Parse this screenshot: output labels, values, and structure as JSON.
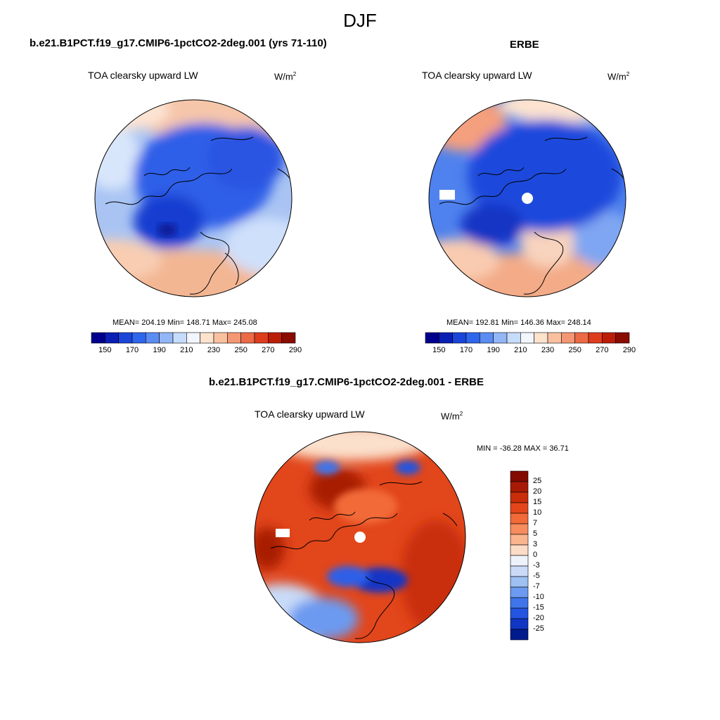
{
  "figure": {
    "season_title": "DJF",
    "panels": [
      {
        "id": "model",
        "title": "b.e21.B1PCT.f19_g17.CMIP6-1pctCO2-2deg.001 (yrs 71-110)",
        "variable": "TOA clearsky upward LW",
        "units_base": "W/m",
        "units_exp": "2",
        "stats": {
          "mean": "204.19",
          "min": "148.71",
          "max": "245.08"
        },
        "stats_text": "MEAN= 204.19  Min= 148.71  Max= 245.08"
      },
      {
        "id": "obs",
        "title": "ERBE",
        "variable": "TOA clearsky upward LW",
        "units_base": "W/m",
        "units_exp": "2",
        "stats": {
          "mean": "192.81",
          "min": "146.36",
          "max": "248.14"
        },
        "stats_text": "MEAN= 192.81  Min= 146.36  Max= 248.14"
      },
      {
        "id": "diff",
        "title": "b.e21.B1PCT.f19_g17.CMIP6-1pctCO2-2deg.001 - ERBE",
        "variable": "TOA clearsky upward LW",
        "units_base": "W/m",
        "units_exp": "2",
        "stats_text": "MIN = -36.28 MAX =  36.71"
      }
    ],
    "abs_colorbar": {
      "labels": [
        "150",
        "170",
        "190",
        "210",
        "230",
        "250",
        "270",
        "290"
      ],
      "colors": [
        "#00008c",
        "#0a1fb4",
        "#1a45d8",
        "#2e66ec",
        "#5b8cf2",
        "#93b6f6",
        "#c6dcfb",
        "#f2f6fd",
        "#fde2cc",
        "#f9c0a0",
        "#f49774",
        "#ec6a46",
        "#dd3d1c",
        "#bc1d08",
        "#8a0b00"
      ]
    },
    "diff_colorbar": {
      "labels": [
        "25",
        "20",
        "15",
        "10",
        "7",
        "5",
        "3",
        "0",
        "-3",
        "-5",
        "-7",
        "-10",
        "-15",
        "-20",
        "-25"
      ],
      "colors": [
        "#820a00",
        "#a81a05",
        "#c92d0a",
        "#e3461b",
        "#f26a38",
        "#f78c5e",
        "#fab48e",
        "#fcdcc6",
        "#eef3fb",
        "#c9dbf7",
        "#9ec0f2",
        "#6c9af0",
        "#3f74ea",
        "#2454e0",
        "#1236c4",
        "#001a8e"
      ]
    }
  }
}
